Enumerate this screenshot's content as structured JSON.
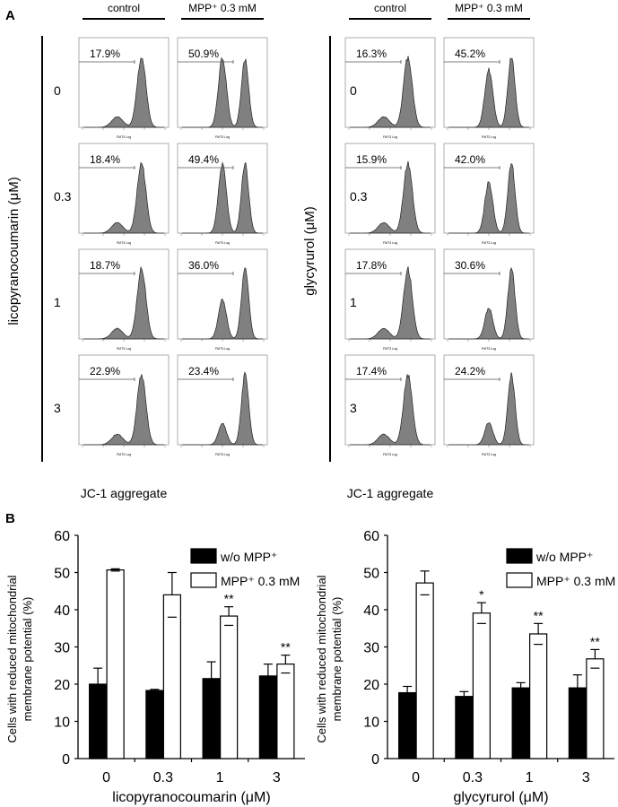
{
  "panel_a": {
    "label": "A",
    "col_headers": [
      "control",
      "MPP⁺ 0.3 mM"
    ],
    "panel_axis_label": "FMT3 Log",
    "xlabel": "JC-1 aggregate",
    "groups": [
      {
        "compound_label": "licopyranocoumarin (μM)",
        "doses": [
          "0",
          "0.3",
          "1",
          "3"
        ],
        "percents": [
          [
            "17.9%",
            "50.9%"
          ],
          [
            "18.4%",
            "49.4%"
          ],
          [
            "18.7%",
            "36.0%"
          ],
          [
            "22.9%",
            "23.4%"
          ]
        ]
      },
      {
        "compound_label": "glycyrurol (μM)",
        "doses": [
          "0",
          "0.3",
          "1",
          "3"
        ],
        "percents": [
          [
            "16.3%",
            "45.2%"
          ],
          [
            "15.9%",
            "42.0%"
          ],
          [
            "17.8%",
            "30.6%"
          ],
          [
            "17.4%",
            "24.2%"
          ]
        ]
      }
    ]
  },
  "panel_b": {
    "label": "B"
  },
  "chart_data": [
    {
      "type": "bar",
      "title": "",
      "xlabel": "licopyranocoumarin (μM)",
      "ylabel": [
        "Cells with reduced mitochondrial",
        "membrane potential (%)"
      ],
      "categories": [
        "0",
        "0.3",
        "1",
        "3"
      ],
      "ylim": [
        0,
        60
      ],
      "yticks": [
        "0",
        "10",
        "20",
        "30",
        "40",
        "50",
        "60"
      ],
      "legend_position": "top-right",
      "series": [
        {
          "name": "w/o MPP⁺",
          "color": "#000000",
          "values": [
            20.0,
            18.3,
            21.5,
            22.2
          ],
          "errors": [
            4.3,
            0.3,
            4.5,
            3.2
          ],
          "significance": [
            "",
            "",
            "",
            ""
          ]
        },
        {
          "name": "MPP⁺ 0.3 mM",
          "color": "#ffffff",
          "values": [
            50.7,
            44.0,
            38.3,
            25.4
          ],
          "errors": [
            0.3,
            6.0,
            2.5,
            2.4
          ],
          "significance": [
            "",
            "",
            "**",
            "**"
          ]
        }
      ]
    },
    {
      "type": "bar",
      "title": "",
      "xlabel": "glycyrurol (μM)",
      "ylabel": [
        "Cells with reduced mitochondrial",
        "membrane potential (%)"
      ],
      "categories": [
        "0",
        "0.3",
        "1",
        "3"
      ],
      "ylim": [
        0,
        60
      ],
      "yticks": [
        "0",
        "10",
        "20",
        "30",
        "40",
        "50",
        "60"
      ],
      "legend_position": "top-right",
      "series": [
        {
          "name": "w/o MPP⁺",
          "color": "#000000",
          "values": [
            17.7,
            16.7,
            19.0,
            19.0
          ],
          "errors": [
            1.7,
            1.3,
            1.4,
            3.5
          ],
          "significance": [
            "",
            "",
            "",
            ""
          ]
        },
        {
          "name": "MPP⁺ 0.3 mM",
          "color": "#ffffff",
          "values": [
            47.2,
            39.1,
            33.5,
            26.8
          ],
          "errors": [
            3.2,
            2.8,
            2.8,
            2.5
          ],
          "significance": [
            "",
            "*",
            "**",
            "**"
          ]
        }
      ]
    }
  ]
}
